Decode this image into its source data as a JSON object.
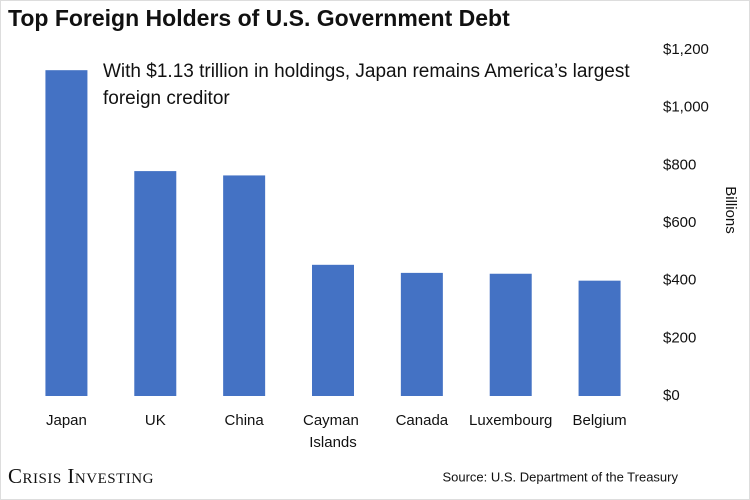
{
  "chart_data": {
    "type": "bar",
    "title": "Top Foreign Holders of U.S. Government Debt",
    "annotation": "With $1.13 trillion in holdings, Japan remains America’s largest foreign creditor",
    "y_axis_label": "Billions",
    "categories": [
      "Japan",
      "UK",
      "China",
      "Cayman Islands",
      "Canada",
      "Luxembourg",
      "Belgium"
    ],
    "values": [
      1130,
      780,
      765,
      455,
      427,
      424,
      400
    ],
    "color": "#4472c4",
    "ylim": [
      0,
      1200
    ],
    "yticks": [
      {
        "value": 0,
        "label": "$0"
      },
      {
        "value": 200,
        "label": "$200"
      },
      {
        "value": 400,
        "label": "$400"
      },
      {
        "value": 600,
        "label": "$600"
      },
      {
        "value": 800,
        "label": "$800"
      },
      {
        "value": 1000,
        "label": "$1,000"
      },
      {
        "value": 1200,
        "label": "$1,200"
      }
    ],
    "source": "Source: U.S. Department of the Treasury",
    "logo": "Crisis Investing"
  }
}
